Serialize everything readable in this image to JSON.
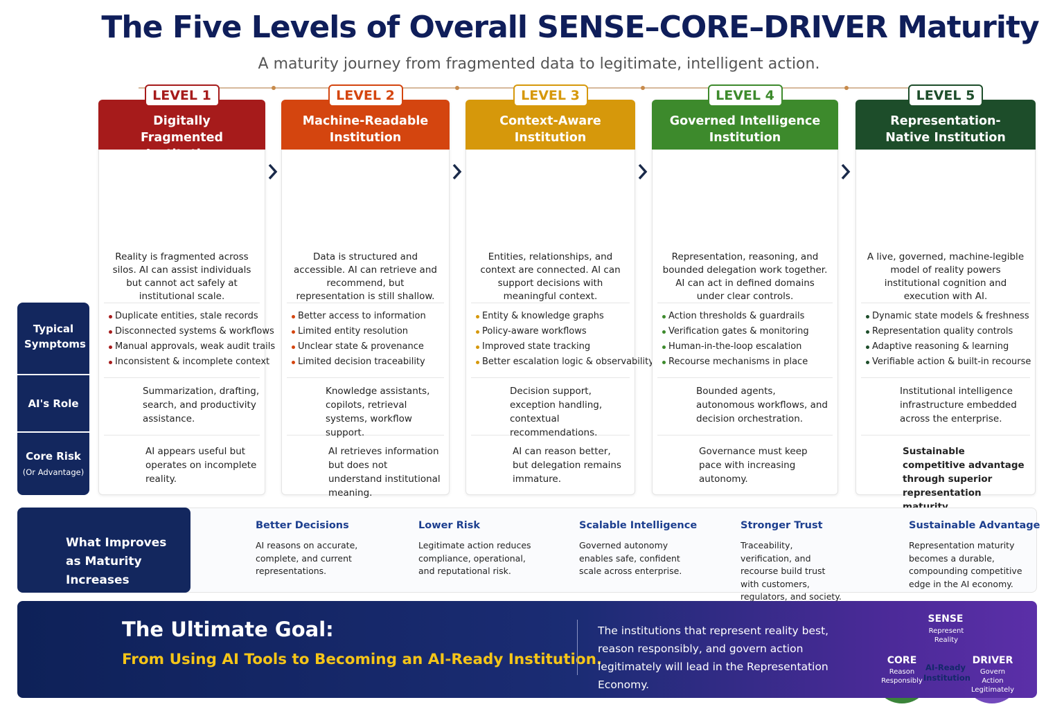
{
  "header": {
    "title": "The Five Levels of Overall SENSE–CORE–DRIVER Maturity",
    "subtitle": "A maturity journey from fragmented data to legitimate, intelligent action."
  },
  "row_labels": {
    "symptoms": "Typical Symptoms",
    "role": "AI's Role",
    "risk": "Core Risk",
    "risk_sub": "(Or Advantage)"
  },
  "levels": [
    {
      "badge": "LEVEL 1",
      "name": "Digitally Fragmented Institution",
      "color": "#a61b1b",
      "description": "Reality is fragmented across silos. AI can assist individuals but cannot act safely at institutional scale.",
      "symptoms": [
        "Duplicate entities, stale records",
        "Disconnected systems & workflows",
        "Manual approvals, weak audit trails",
        "Inconsistent & incomplete context"
      ],
      "role": "Summarization, drafting, search, and productivity assistance.",
      "risk": "AI appears useful but operates on incomplete reality."
    },
    {
      "badge": "LEVEL 2",
      "name": "Machine-Readable Institution",
      "color": "#d4450f",
      "description": "Data is structured and accessible. AI can retrieve and recommend, but representation is still shallow.",
      "symptoms": [
        "Better access to information",
        "Limited entity resolution",
        "Unclear state & provenance",
        "Limited decision traceability"
      ],
      "role": "Knowledge assistants, copilots, retrieval systems, workflow support.",
      "risk": "AI retrieves information but does not understand institutional meaning."
    },
    {
      "badge": "LEVEL 3",
      "name": "Context-Aware Institution",
      "color": "#d6980b",
      "description": "Entities, relationships, and context are connected. AI can support decisions with meaningful context.",
      "symptoms": [
        "Entity & knowledge graphs",
        "Policy-aware workflows",
        "Improved state tracking",
        "Better escalation logic & observability"
      ],
      "role": "Decision support, exception handling, contextual recommendations.",
      "risk": "AI can reason better, but delegation remains immature."
    },
    {
      "badge": "LEVEL 4",
      "name": "Governed Intelligence Institution",
      "color": "#3d8a2c",
      "description": "Representation, reasoning, and bounded delegation work together. AI can act in defined domains under clear controls.",
      "symptoms": [
        "Action thresholds & guardrails",
        "Verification gates & monitoring",
        "Human-in-the-loop escalation",
        "Recourse mechanisms in place"
      ],
      "role": "Bounded agents, autonomous workflows, and decision orchestration.",
      "risk": "Governance must keep pace with increasing autonomy."
    },
    {
      "badge": "LEVEL 5",
      "name": "Representation-Native Institution",
      "color": "#1d4d2a",
      "description": "A live, governed, machine-legible model of reality powers institutional cognition and execution with AI.",
      "symptoms": [
        "Dynamic state models & freshness",
        "Representation quality controls",
        "Adaptive reasoning & learning",
        "Verifiable action & built-in recourse"
      ],
      "role": "Institutional intelligence infrastructure embedded across the enterprise.",
      "risk": "Sustainable competitive advantage through superior representation maturity."
    }
  ],
  "improves": {
    "title": "What Improves as Maturity Increases",
    "items": [
      {
        "title": "Better Decisions",
        "text": "AI reasons on accurate, complete, and current representations."
      },
      {
        "title": "Lower Risk",
        "text": "Legitimate action reduces compliance, operational, and reputational risk."
      },
      {
        "title": "Scalable Intelligence",
        "text": "Governed autonomy enables safe, confident scale across enterprise."
      },
      {
        "title": "Stronger Trust",
        "text": "Traceability, verification, and recourse build trust with customers, regulators, and society."
      },
      {
        "title": "Sustainable Advantage",
        "text": "Representation maturity becomes a durable, compounding competitive edge in the AI economy."
      }
    ]
  },
  "goal": {
    "title": "The Ultimate Goal:",
    "subtitle": "From Using AI Tools to Becoming an AI-Ready Institution.",
    "statement": "The institutions that represent reality best, reason responsibly, and govern action legitimately will lead in the Representation Economy.",
    "venn": {
      "sense": {
        "title": "SENSE",
        "text": "Represent Reality"
      },
      "core": {
        "title": "CORE",
        "text": "Reason Responsibly"
      },
      "driver": {
        "title": "DRIVER",
        "text": "Govern Action Legitimately"
      },
      "center": "AI-Ready Institution"
    }
  }
}
